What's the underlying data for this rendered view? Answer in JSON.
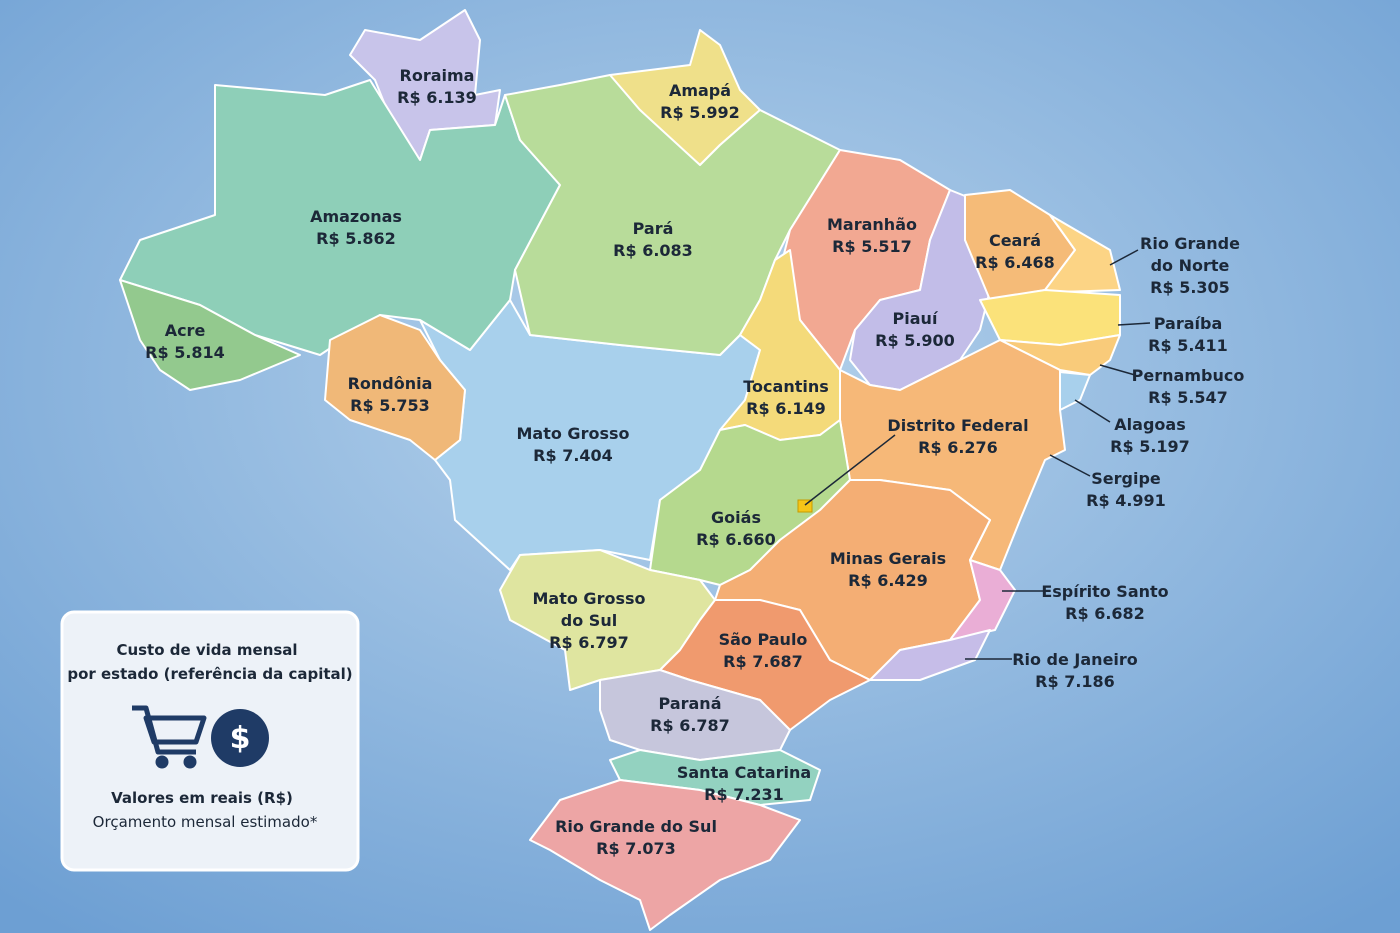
{
  "legend": {
    "title": [
      "Custo de vida mensal",
      "por estado (referência da capital)"
    ],
    "icon_symbol": "$",
    "units": "Valores em reais (R$)",
    "note": "Orçamento mensal estimado*"
  },
  "states": [
    {
      "name": [
        "Roraima"
      ],
      "value": "R$ 6.139"
    },
    {
      "name": [
        "Amapá"
      ],
      "value": "R$ 5.992"
    },
    {
      "name": [
        "Amazonas"
      ],
      "value": "R$ 5.862"
    },
    {
      "name": [
        "Pará"
      ],
      "value": "R$ 6.083"
    },
    {
      "name": [
        "Acre"
      ],
      "value": "R$ 5.814"
    },
    {
      "name": [
        "Rondônia"
      ],
      "value": "R$ 5.753"
    },
    {
      "name": [
        "Mato Grosso"
      ],
      "value": "R$ 7.404"
    },
    {
      "name": [
        "Maranhão"
      ],
      "value": "R$ 5.517"
    },
    {
      "name": [
        "Piauí"
      ],
      "value": "R$ 5.900"
    },
    {
      "name": [
        "Ceará"
      ],
      "value": "R$ 6.468"
    },
    {
      "name": [
        "Tocantins"
      ],
      "value": "R$ 6.149"
    },
    {
      "name": [
        "Distrito Federal"
      ],
      "value": "R$ 6.276"
    },
    {
      "name": [
        "Rio Grande",
        "do Norte"
      ],
      "value": "R$ 5.305"
    },
    {
      "name": [
        "Paraíba"
      ],
      "value": "R$ 5.411"
    },
    {
      "name": [
        "Pernambuco"
      ],
      "value": "R$ 5.547"
    },
    {
      "name": [
        "Alagoas"
      ],
      "value": "R$ 5.197"
    },
    {
      "name": [
        "Sergipe"
      ],
      "value": "R$ 4.991"
    },
    {
      "name": [
        "Goiás"
      ],
      "value": "R$ 6.660"
    },
    {
      "name": [
        "Minas Gerais"
      ],
      "value": "R$ 6.429"
    },
    {
      "name": [
        "Espírito Santo"
      ],
      "value": "R$ 6.682"
    },
    {
      "name": [
        "Rio de Janeiro"
      ],
      "value": "R$ 7.186"
    },
    {
      "name": [
        "Mato Grosso",
        "do Sul"
      ],
      "value": "R$ 6.797"
    },
    {
      "name": [
        "São Paulo"
      ],
      "value": "R$ 7.687"
    },
    {
      "name": [
        "Paraná"
      ],
      "value": "R$ 6.787"
    },
    {
      "name": [
        "Santa Catarina"
      ],
      "value": "R$ 7.231"
    },
    {
      "name": [
        "Rio Grande do Sul"
      ],
      "value": "R$ 7.073"
    }
  ]
}
